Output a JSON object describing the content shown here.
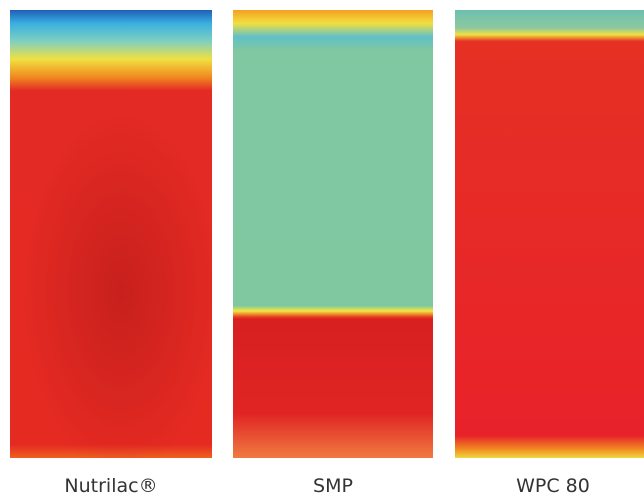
{
  "panels": [
    {
      "label": "Nutrilac®"
    },
    {
      "label": "SMP"
    },
    {
      "label": "WPC 80"
    }
  ]
}
